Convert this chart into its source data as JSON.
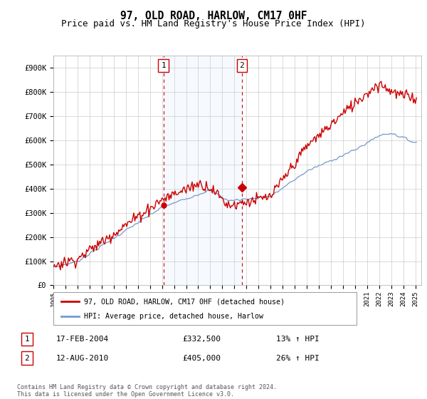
{
  "title": "97, OLD ROAD, HARLOW, CM17 0HF",
  "subtitle": "Price paid vs. HM Land Registry's House Price Index (HPI)",
  "ylabel_ticks": [
    "£0",
    "£100K",
    "£200K",
    "£300K",
    "£400K",
    "£500K",
    "£600K",
    "£700K",
    "£800K",
    "£900K"
  ],
  "ytick_vals": [
    0,
    100000,
    200000,
    300000,
    400000,
    500000,
    600000,
    700000,
    800000,
    900000
  ],
  "ylim": [
    0,
    950000
  ],
  "x_start_year": 1995,
  "x_end_year": 2025,
  "marker1_year": 2004.12,
  "marker1_price": 332500,
  "marker2_year": 2010.62,
  "marker2_price": 405000,
  "red_color": "#cc0000",
  "blue_color": "#7799cc",
  "shade_color": "#ddeeff",
  "grid_color": "#cccccc",
  "legend_label_red": "97, OLD ROAD, HARLOW, CM17 0HF (detached house)",
  "legend_label_blue": "HPI: Average price, detached house, Harlow",
  "footer": "Contains HM Land Registry data © Crown copyright and database right 2024.\nThis data is licensed under the Open Government Licence v3.0.",
  "title_fontsize": 10.5,
  "subtitle_fontsize": 9
}
